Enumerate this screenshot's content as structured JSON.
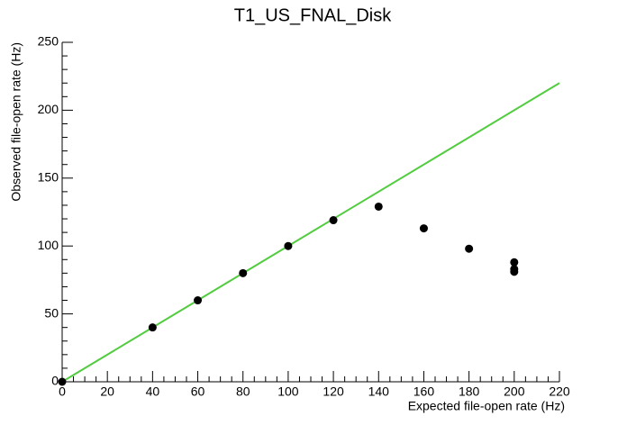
{
  "chart_data": {
    "type": "scatter",
    "title": "T1_US_FNAL_Disk",
    "x_label": "Expected file-open rate (Hz)",
    "y_label": "Observed file-open rate (Hz)",
    "xlim": [
      0,
      220
    ],
    "ylim": [
      0,
      250
    ],
    "xticks": [
      0,
      20,
      40,
      60,
      80,
      100,
      120,
      140,
      160,
      180,
      200,
      220
    ],
    "yticks": [
      0,
      50,
      100,
      150,
      200,
      250
    ],
    "series": [
      {
        "color": "#000000",
        "x": [
          0,
          40,
          60,
          80,
          100,
          120,
          140,
          160,
          180,
          200,
          200,
          200
        ],
        "values": [
          0,
          40,
          60,
          80,
          100,
          119,
          129,
          113,
          98,
          88,
          83,
          81
        ]
      },
      {
        "color": "#52cc3f",
        "style": "line",
        "x": [
          0,
          220
        ],
        "values": [
          0,
          220
        ]
      }
    ]
  }
}
